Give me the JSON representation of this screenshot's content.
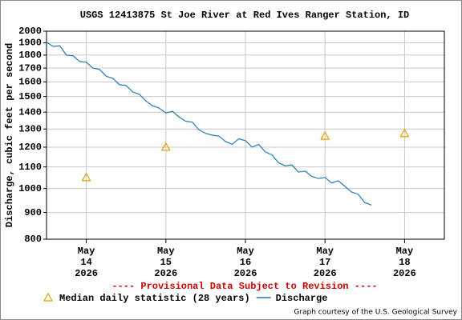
{
  "chart_data": {
    "type": "line",
    "title": "USGS 12413875 St Joe River at Red Ives Ranger Station, ID",
    "y_label": "Discharge, cubic feet per second",
    "annotation": "---- Provisional Data Subject to Revision ----",
    "credit": "Graph courtesy of the U.S. Geological Survey",
    "yscale": "log",
    "grid": true,
    "ylim": [
      800,
      2000
    ],
    "yticks": [
      800,
      900,
      1000,
      1100,
      1200,
      1300,
      1400,
      1500,
      1600,
      1700,
      1800,
      1900,
      2000
    ],
    "xlim": [
      "2026-05-13T12:00",
      "2026-05-18T12:00"
    ],
    "xticks": [
      {
        "value": "2026-05-14T00:00",
        "label": "May\n14\n2026"
      },
      {
        "value": "2026-05-15T00:00",
        "label": "May\n15\n2026"
      },
      {
        "value": "2026-05-16T00:00",
        "label": "May\n16\n2026"
      },
      {
        "value": "2026-05-17T00:00",
        "label": "May\n17\n2026"
      },
      {
        "value": "2026-05-18T00:00",
        "label": "May\n18\n2026"
      }
    ],
    "series": [
      {
        "name": "Median daily statistic (28 years)",
        "type": "scatter",
        "color": "#e0a000",
        "x": [
          "2026-05-14T00:00",
          "2026-05-15T00:00",
          "2026-05-17T00:00",
          "2026-05-18T00:00"
        ],
        "values": [
          1050,
          1200,
          1260,
          1275
        ]
      },
      {
        "name": "Discharge",
        "type": "line",
        "color": "#1f7bb0",
        "x": [
          "2026-05-13T12:00",
          "2026-05-13T14:00",
          "2026-05-13T16:00",
          "2026-05-13T18:00",
          "2026-05-13T20:00",
          "2026-05-13T22:00",
          "2026-05-14T00:00",
          "2026-05-14T02:00",
          "2026-05-14T04:00",
          "2026-05-14T06:00",
          "2026-05-14T08:00",
          "2026-05-14T10:00",
          "2026-05-14T12:00",
          "2026-05-14T14:00",
          "2026-05-14T16:00",
          "2026-05-14T18:00",
          "2026-05-14T20:00",
          "2026-05-14T22:00",
          "2026-05-15T00:00",
          "2026-05-15T02:00",
          "2026-05-15T04:00",
          "2026-05-15T06:00",
          "2026-05-15T08:00",
          "2026-05-15T10:00",
          "2026-05-15T12:00",
          "2026-05-15T14:00",
          "2026-05-15T16:00",
          "2026-05-15T18:00",
          "2026-05-15T20:00",
          "2026-05-15T22:00",
          "2026-05-16T00:00",
          "2026-05-16T02:00",
          "2026-05-16T04:00",
          "2026-05-16T06:00",
          "2026-05-16T08:00",
          "2026-05-16T10:00",
          "2026-05-16T12:00",
          "2026-05-16T14:00",
          "2026-05-16T16:00",
          "2026-05-16T18:00",
          "2026-05-16T20:00",
          "2026-05-16T22:00",
          "2026-05-17T00:00",
          "2026-05-17T02:00",
          "2026-05-17T04:00",
          "2026-05-17T06:00",
          "2026-05-17T08:00",
          "2026-05-17T10:00",
          "2026-05-17T12:00",
          "2026-05-17T14:00"
        ],
        "values": [
          1905,
          1870,
          1875,
          1800,
          1795,
          1750,
          1745,
          1700,
          1690,
          1640,
          1625,
          1580,
          1575,
          1530,
          1515,
          1470,
          1440,
          1425,
          1395,
          1405,
          1370,
          1345,
          1340,
          1295,
          1275,
          1265,
          1260,
          1230,
          1215,
          1245,
          1235,
          1200,
          1215,
          1175,
          1160,
          1120,
          1105,
          1110,
          1075,
          1080,
          1055,
          1045,
          1050,
          1025,
          1035,
          1010,
          985,
          975,
          940,
          930
        ]
      }
    ]
  }
}
